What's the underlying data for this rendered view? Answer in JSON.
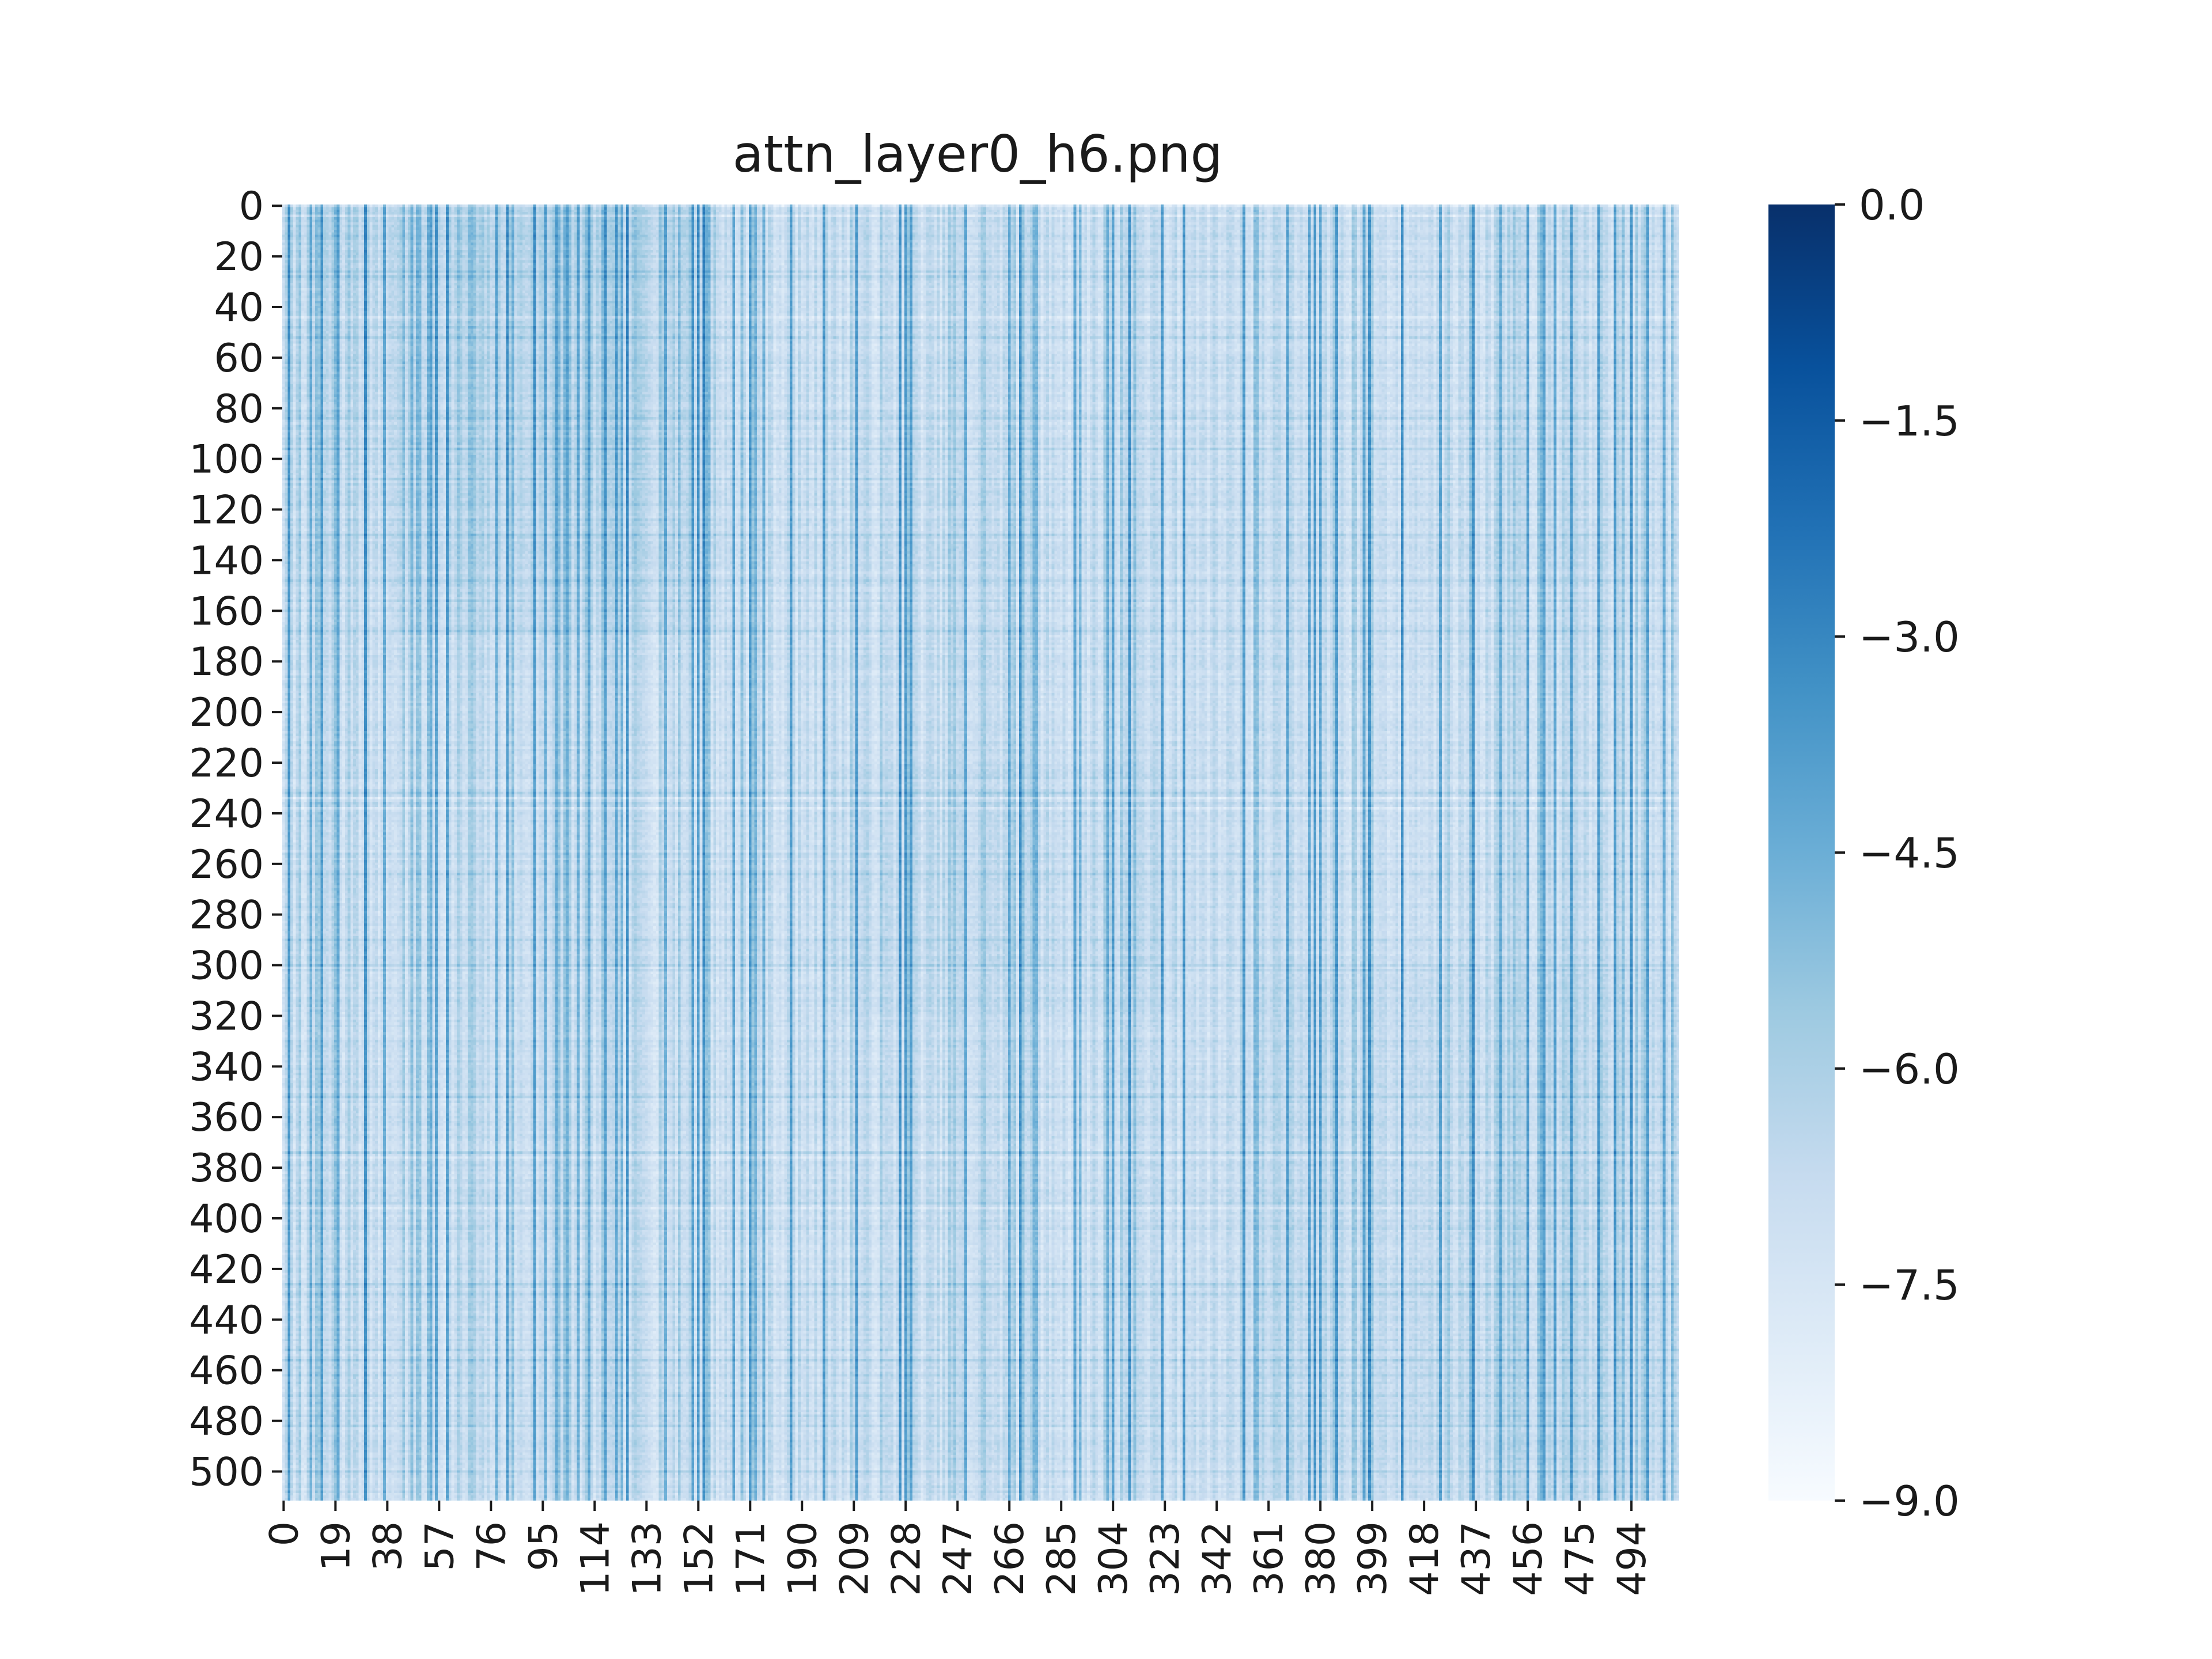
{
  "chart_data": {
    "type": "heatmap",
    "title": "attn_layer0_h6.png",
    "xlabel": "",
    "ylabel": "",
    "n_rows": 512,
    "n_cols": 512,
    "x_tick_labels": [
      "0",
      "19",
      "38",
      "57",
      "76",
      "95",
      "114",
      "133",
      "152",
      "171",
      "190",
      "209",
      "228",
      "247",
      "266",
      "285",
      "304",
      "323",
      "342",
      "361",
      "380",
      "399",
      "418",
      "437",
      "456",
      "475",
      "494"
    ],
    "y_tick_labels": [
      "0",
      "20",
      "40",
      "60",
      "80",
      "100",
      "120",
      "140",
      "160",
      "180",
      "200",
      "220",
      "240",
      "260",
      "280",
      "300",
      "320",
      "340",
      "360",
      "380",
      "400",
      "420",
      "440",
      "460",
      "480",
      "500"
    ],
    "colormap": "Blues",
    "colorbar": {
      "range": [
        -9.0,
        0.0
      ],
      "tick_values": [
        0.0,
        -1.5,
        -3.0,
        -4.5,
        -6.0,
        -7.5,
        -9.0
      ],
      "tick_labels": [
        "0.0",
        "−1.5",
        "−3.0",
        "−4.5",
        "−6.0",
        "−7.5",
        "−9.0"
      ]
    },
    "description": "Dense attention log-probability map; values mostly between -9.0 and -4.5 with darker vertical stripes at certain key columns (e.g. near 30, 54, 80-110, 152, 171, 228, 304, 380, 396)."
  },
  "colors": {
    "cmap_stops": [
      "#f7fbff",
      "#deebf7",
      "#c6dbef",
      "#9ecae1",
      "#6baed6",
      "#4292c6",
      "#2171b5",
      "#08519c",
      "#08306b"
    ]
  }
}
